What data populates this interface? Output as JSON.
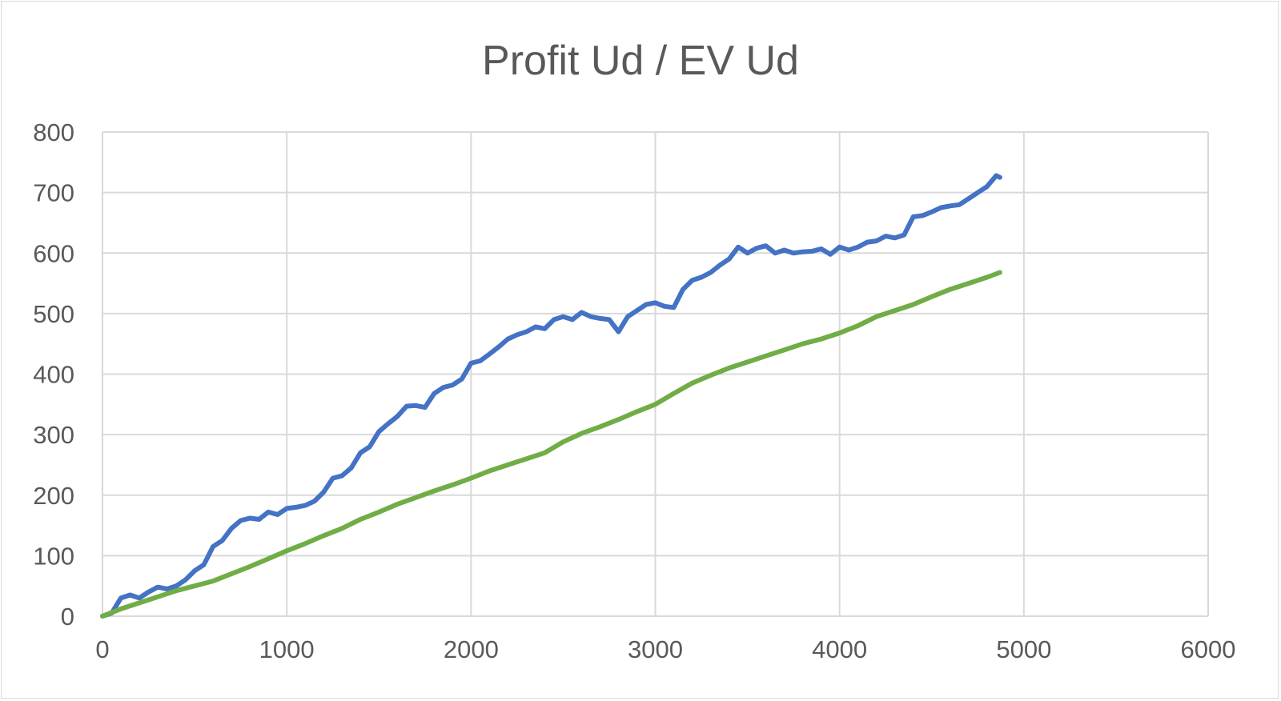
{
  "chart_data": {
    "type": "line",
    "title": "Profit Ud / EV Ud",
    "xlabel": "",
    "ylabel": "",
    "xlim": [
      0,
      6000
    ],
    "ylim": [
      0,
      800
    ],
    "xticks": [
      0,
      1000,
      2000,
      3000,
      4000,
      5000,
      6000
    ],
    "yticks": [
      0,
      100,
      200,
      300,
      400,
      500,
      600,
      700,
      800
    ],
    "grid": true,
    "legend": "none",
    "series": [
      {
        "color": "#4472c4",
        "x": [
          0,
          50,
          100,
          150,
          200,
          250,
          300,
          350,
          400,
          450,
          500,
          550,
          600,
          650,
          700,
          750,
          800,
          850,
          900,
          950,
          1000,
          1050,
          1100,
          1150,
          1200,
          1250,
          1300,
          1350,
          1400,
          1450,
          1500,
          1550,
          1600,
          1650,
          1700,
          1750,
          1800,
          1850,
          1900,
          1950,
          2000,
          2050,
          2100,
          2150,
          2200,
          2250,
          2300,
          2350,
          2400,
          2450,
          2500,
          2550,
          2600,
          2650,
          2700,
          2750,
          2800,
          2850,
          2900,
          2950,
          3000,
          3050,
          3100,
          3150,
          3200,
          3250,
          3300,
          3350,
          3400,
          3450,
          3500,
          3550,
          3600,
          3650,
          3700,
          3750,
          3800,
          3850,
          3900,
          3950,
          4000,
          4050,
          4100,
          4150,
          4200,
          4250,
          4300,
          4350,
          4400,
          4450,
          4500,
          4550,
          4600,
          4650,
          4700,
          4750,
          4800,
          4850,
          4870
        ],
        "values": [
          0,
          5,
          30,
          35,
          30,
          40,
          48,
          45,
          50,
          60,
          75,
          85,
          115,
          125,
          145,
          158,
          162,
          160,
          172,
          168,
          178,
          180,
          183,
          190,
          205,
          228,
          232,
          245,
          270,
          280,
          305,
          318,
          330,
          347,
          348,
          345,
          368,
          378,
          382,
          392,
          418,
          422,
          433,
          445,
          458,
          465,
          470,
          478,
          475,
          490,
          495,
          490,
          502,
          495,
          492,
          490,
          470,
          495,
          505,
          515,
          518,
          512,
          510,
          540,
          555,
          560,
          568,
          580,
          590,
          610,
          600,
          608,
          612,
          600,
          605,
          600,
          602,
          603,
          607,
          598,
          610,
          605,
          610,
          618,
          620,
          628,
          625,
          630,
          660,
          662,
          668,
          675,
          678,
          680,
          690,
          700,
          710,
          728,
          725
        ]
      },
      {
        "color": "#70ad47",
        "x": [
          0,
          100,
          200,
          300,
          400,
          500,
          600,
          700,
          800,
          900,
          1000,
          1100,
          1200,
          1300,
          1400,
          1500,
          1600,
          1700,
          1800,
          1900,
          2000,
          2100,
          2200,
          2300,
          2400,
          2500,
          2600,
          2700,
          2800,
          2900,
          3000,
          3100,
          3200,
          3300,
          3400,
          3500,
          3600,
          3700,
          3800,
          3900,
          4000,
          4100,
          4200,
          4300,
          4400,
          4500,
          4600,
          4700,
          4800,
          4870
        ],
        "values": [
          0,
          12,
          22,
          32,
          42,
          50,
          58,
          70,
          82,
          95,
          108,
          120,
          133,
          145,
          160,
          172,
          185,
          196,
          207,
          217,
          228,
          240,
          250,
          260,
          270,
          288,
          302,
          313,
          325,
          338,
          350,
          368,
          385,
          398,
          410,
          420,
          430,
          440,
          450,
          458,
          468,
          480,
          495,
          505,
          515,
          528,
          540,
          550,
          560,
          568
        ]
      }
    ]
  }
}
